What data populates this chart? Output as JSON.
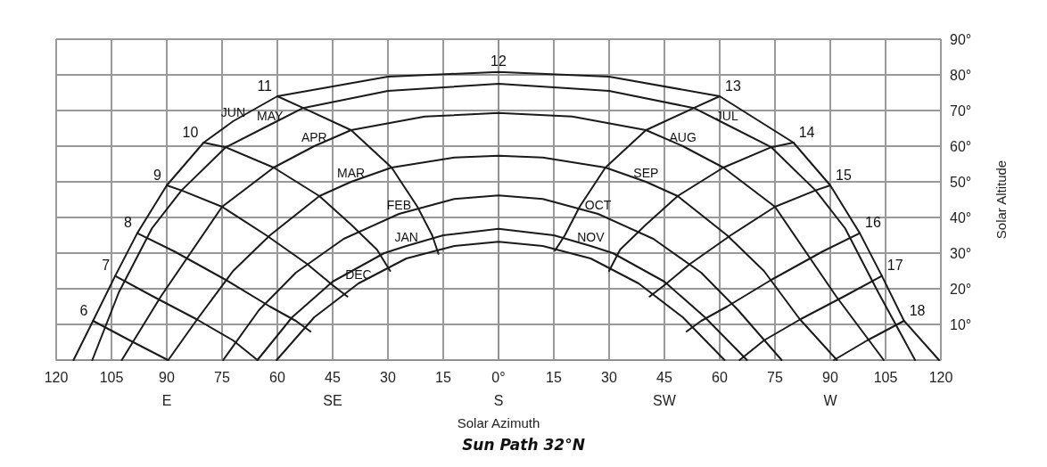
{
  "chart_data": {
    "type": "line",
    "title": "Sun Path 32°N",
    "xlabel": "Solar Azimuth",
    "ylabel": "Solar Altitude",
    "xlim": [
      -120,
      120
    ],
    "xticks": [
      {
        "value": -120,
        "label": "120"
      },
      {
        "value": -105,
        "label": "105"
      },
      {
        "value": -90,
        "label": "90\nE"
      },
      {
        "value": -75,
        "label": "75"
      },
      {
        "value": -60,
        "label": "60"
      },
      {
        "value": -45,
        "label": "45\nSE"
      },
      {
        "value": -30,
        "label": "30"
      },
      {
        "value": -15,
        "label": "15"
      },
      {
        "value": 0,
        "label": "0°\nS"
      },
      {
        "value": 15,
        "label": "15"
      },
      {
        "value": 30,
        "label": "30"
      },
      {
        "value": 45,
        "label": "45\nSW"
      },
      {
        "value": 60,
        "label": "60"
      },
      {
        "value": 75,
        "label": "75"
      },
      {
        "value": 90,
        "label": "90\nW"
      },
      {
        "value": 105,
        "label": "105"
      },
      {
        "value": 120,
        "label": "120"
      }
    ],
    "ylim": [
      0,
      90
    ],
    "yticks": [
      {
        "value": 0,
        "label": null
      },
      {
        "value": 10,
        "label": "10°"
      },
      {
        "value": 20,
        "label": "20°"
      },
      {
        "value": 30,
        "label": "30°"
      },
      {
        "value": 40,
        "label": "40°"
      },
      {
        "value": 50,
        "label": "50°"
      },
      {
        "value": 60,
        "label": "60°"
      },
      {
        "value": 70,
        "label": "70°"
      },
      {
        "value": 80,
        "label": "80°"
      },
      {
        "value": 90,
        "label": "90°"
      }
    ],
    "grid": true,
    "marker": "none",
    "line_style": "solid",
    "series": [
      {
        "color": "#1a1a1a",
        "x": [
          -115.3,
          -110,
          -104,
          -98,
          -90,
          -80,
          -72,
          -60,
          -30,
          0,
          30,
          60,
          80,
          90,
          98,
          104,
          110,
          119.5
        ],
        "values": [
          0,
          11,
          23.6,
          35.6,
          49,
          61,
          67,
          74,
          79.5,
          80.8,
          79.5,
          74,
          61,
          49,
          35.6,
          23.6,
          11,
          0
        ]
      },
      {
        "color": "#1a1a1a",
        "x": [
          -110.2,
          -103,
          -94,
          -86,
          -74,
          -62,
          -53,
          -30,
          0,
          30,
          53,
          62,
          74,
          86,
          94,
          103,
          113
        ],
        "values": [
          0,
          19,
          37,
          47.6,
          59.7,
          66,
          70.7,
          75.5,
          77.5,
          75.5,
          70.7,
          66,
          59.7,
          47.6,
          37,
          19,
          0
        ]
      },
      {
        "color": "#1a1a1a",
        "x": [
          -102.2,
          -91.5,
          -75,
          -61,
          -50,
          -40,
          -20,
          0,
          20,
          40,
          50,
          61,
          75,
          91.5,
          104.5
        ],
        "values": [
          0,
          18,
          43,
          54,
          60,
          64.5,
          68.3,
          69.3,
          68.3,
          64.5,
          60,
          54,
          43,
          18,
          0
        ]
      },
      {
        "color": "#1a1a1a",
        "x": [
          -89.6,
          -81.7,
          -72,
          -62,
          -48.6,
          -40,
          -29,
          -12,
          0,
          12,
          29,
          40,
          48.6,
          62,
          72,
          81.7,
          91.8
        ],
        "values": [
          0,
          11.5,
          25,
          35,
          46,
          50,
          54,
          56.8,
          57.3,
          56.8,
          54,
          50,
          46,
          35,
          25,
          11.5,
          0
        ]
      },
      {
        "color": "#1a1a1a",
        "x": [
          -74.7,
          -65,
          -55,
          -42,
          -27,
          -12,
          0,
          12,
          27,
          42,
          55,
          65,
          76.8
        ],
        "values": [
          0,
          14,
          24.5,
          34,
          41,
          45.2,
          46.2,
          45.2,
          41,
          34,
          24.5,
          14,
          0
        ]
      },
      {
        "color": "#1a1a1a",
        "x": [
          -65.4,
          -56,
          -45,
          -31,
          -25,
          -15,
          0,
          15,
          25,
          31,
          45,
          56,
          67.4
        ],
        "values": [
          0,
          12,
          22,
          30,
          32,
          35,
          36.8,
          35,
          32,
          30,
          22,
          12,
          0
        ]
      },
      {
        "color": "#1a1a1a",
        "x": [
          -60.2,
          -50,
          -38,
          -25,
          -12,
          0,
          12,
          25,
          38,
          50,
          61.3
        ],
        "values": [
          0,
          12,
          21.5,
          28.5,
          32,
          33.2,
          32,
          28.5,
          21.5,
          12,
          0
        ]
      },
      {
        "color": "#1a1a1a",
        "x": [
          -110,
          -100,
          -89.7
        ],
        "values": [
          11,
          5.5,
          0
        ]
      },
      {
        "color": "#1a1a1a",
        "x": [
          -104,
          -94,
          -82,
          -72,
          -65.4
        ],
        "values": [
          23.6,
          18,
          11.5,
          5.5,
          0
        ]
      },
      {
        "color": "#1a1a1a",
        "x": [
          -98,
          -88,
          -74,
          -62,
          -55,
          -51
        ],
        "values": [
          35.6,
          30.5,
          22.5,
          15,
          11,
          8
        ]
      },
      {
        "color": "#1a1a1a",
        "x": [
          -90,
          -86,
          -75,
          -63,
          -52,
          -45,
          -41
        ],
        "values": [
          49,
          47.6,
          43,
          35,
          27,
          21,
          17.8
        ]
      },
      {
        "color": "#1a1a1a",
        "x": [
          -80,
          -74,
          -61,
          -48.6,
          -40,
          -33,
          -29.4
        ],
        "values": [
          61,
          59.7,
          54,
          46,
          38,
          31,
          25
        ]
      },
      {
        "color": "#1a1a1a",
        "x": [
          -60,
          -53,
          -40,
          -29,
          -22,
          -18,
          -16.3
        ],
        "values": [
          74,
          70.7,
          64.5,
          54,
          43,
          35,
          29.8
        ]
      },
      {
        "color": "#1a1a1a",
        "x": [
          60,
          53,
          40,
          29,
          22,
          18,
          15.3
        ],
        "values": [
          74,
          70.7,
          64.5,
          54,
          43,
          35,
          30.7
        ]
      },
      {
        "color": "#1a1a1a",
        "x": [
          80,
          74,
          61,
          48.6,
          40,
          33,
          30
        ],
        "values": [
          61,
          59.7,
          54,
          46,
          38,
          31,
          25
        ]
      },
      {
        "color": "#1a1a1a",
        "x": [
          90,
          86,
          75,
          63,
          52,
          45,
          41
        ],
        "values": [
          49,
          47.6,
          43,
          35,
          27,
          21,
          17.8
        ]
      },
      {
        "color": "#1a1a1a",
        "x": [
          98,
          88,
          74,
          62,
          55,
          51
        ],
        "values": [
          35.6,
          30.5,
          22.5,
          15,
          11,
          8
        ]
      },
      {
        "color": "#1a1a1a",
        "x": [
          104,
          94,
          82,
          72,
          65.4
        ],
        "values": [
          23.6,
          18,
          11.5,
          5.5,
          0
        ]
      },
      {
        "color": "#1a1a1a",
        "x": [
          110,
          100,
          91
        ],
        "values": [
          11,
          5.5,
          0
        ]
      }
    ],
    "annotations": [
      {
        "text": "JUN",
        "x": -72,
        "y": 67
      },
      {
        "text": "MAY",
        "x": -62,
        "y": 66
      },
      {
        "text": "APR",
        "x": -50,
        "y": 60
      },
      {
        "text": "MAR",
        "x": -40,
        "y": 50
      },
      {
        "text": "FEB",
        "x": -27,
        "y": 41
      },
      {
        "text": "JAN",
        "x": -25,
        "y": 32
      },
      {
        "text": "DEC",
        "x": -38,
        "y": 21.5
      },
      {
        "text": "JUL",
        "x": 62,
        "y": 66
      },
      {
        "text": "AUG",
        "x": 50,
        "y": 60
      },
      {
        "text": "SEP",
        "x": 40,
        "y": 50
      },
      {
        "text": "OCT",
        "x": 27,
        "y": 41
      },
      {
        "text": "NOV",
        "x": 25,
        "y": 32
      },
      {
        "text": "6",
        "x": -110,
        "y": 11
      },
      {
        "text": "7",
        "x": -104,
        "y": 23.6
      },
      {
        "text": "8",
        "x": -98,
        "y": 35.6
      },
      {
        "text": "9",
        "x": -90,
        "y": 49
      },
      {
        "text": "10",
        "x": -80,
        "y": 61
      },
      {
        "text": "11",
        "x": -60,
        "y": 74
      },
      {
        "text": "12",
        "x": 0,
        "y": 80.8
      },
      {
        "text": "13",
        "x": 60,
        "y": 74
      },
      {
        "text": "14",
        "x": 80,
        "y": 61
      },
      {
        "text": "15",
        "x": 90,
        "y": 49
      },
      {
        "text": "16",
        "x": 98,
        "y": 35.6
      },
      {
        "text": "17",
        "x": 104,
        "y": 23.6
      },
      {
        "text": "18",
        "x": 110,
        "y": 11
      }
    ]
  }
}
